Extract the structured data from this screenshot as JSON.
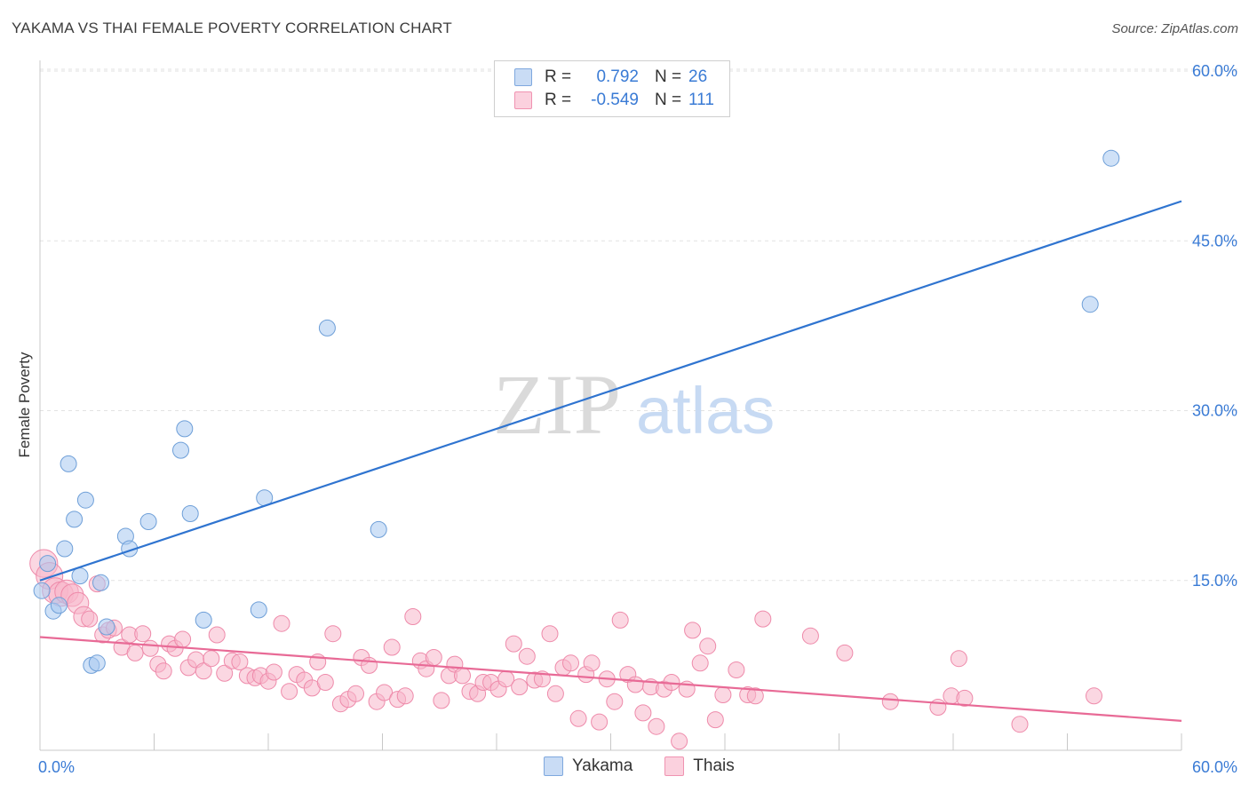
{
  "header": {
    "title": "YAKAMA VS THAI FEMALE POVERTY CORRELATION CHART",
    "source": "Source: ZipAtlas.com"
  },
  "watermark": {
    "zip": "ZIP",
    "atlas": "atlas"
  },
  "legend": {
    "rows": [
      {
        "r_label": "R =",
        "r_value": "0.792",
        "n_label": "N =",
        "n_value": "26",
        "color": "#a8c8f0"
      },
      {
        "r_label": "R =",
        "r_value": "-0.549",
        "n_label": "N =",
        "n_value": "111",
        "color": "#f7b6cb"
      }
    ]
  },
  "bottom_legend": [
    {
      "label": "Yakama",
      "color": "#a8c8f0"
    },
    {
      "label": "Thais",
      "color": "#f7b6cb"
    }
  ],
  "colors": {
    "yakama_fill": "#a8c8f0",
    "yakama_stroke": "#6e9fd8",
    "yakama_line": "#2f74d0",
    "thai_fill": "#f7b6cb",
    "thai_stroke": "#ee8aaa",
    "thai_line": "#e86a96",
    "grid": "#e2e2e2",
    "axis_label": "#3a7bd5"
  },
  "chart_data": {
    "type": "scatter",
    "title": "YAKAMA VS THAI FEMALE POVERTY CORRELATION CHART",
    "xlabel": "",
    "ylabel": "Female Poverty",
    "xlim": [
      0,
      60
    ],
    "ylim": [
      0,
      63.5
    ],
    "x_tick_labels": [
      "0.0%",
      "60.0%"
    ],
    "y_ticks": [
      15,
      30,
      45,
      60
    ],
    "y_tick_labels": [
      "15.0%",
      "30.0%",
      "45.0%",
      "60.0%"
    ],
    "grid": true,
    "legend_position": "top-center",
    "series": [
      {
        "name": "Yakama",
        "r": 0.792,
        "n": 26,
        "trend": {
          "x": [
            0,
            60
          ],
          "y": [
            15.0,
            48.5
          ]
        },
        "points": [
          [
            0.1,
            14.1
          ],
          [
            0.4,
            16.5
          ],
          [
            0.7,
            12.3
          ],
          [
            1.0,
            12.8
          ],
          [
            1.3,
            17.8
          ],
          [
            1.5,
            25.3
          ],
          [
            1.8,
            20.4
          ],
          [
            2.1,
            15.4
          ],
          [
            2.4,
            22.1
          ],
          [
            2.7,
            7.5
          ],
          [
            3.0,
            7.7
          ],
          [
            3.2,
            14.8
          ],
          [
            3.5,
            10.9
          ],
          [
            4.5,
            18.9
          ],
          [
            4.7,
            17.8
          ],
          [
            5.7,
            20.2
          ],
          [
            7.4,
            26.5
          ],
          [
            7.6,
            28.4
          ],
          [
            7.9,
            20.9
          ],
          [
            8.6,
            11.5
          ],
          [
            11.5,
            12.4
          ],
          [
            11.8,
            22.3
          ],
          [
            15.1,
            37.3
          ],
          [
            17.8,
            19.5
          ],
          [
            55.2,
            39.4
          ],
          [
            56.3,
            52.3
          ]
        ]
      },
      {
        "name": "Thais",
        "r": -0.549,
        "n": 111,
        "trend": {
          "x": [
            0,
            60
          ],
          "y": [
            10.0,
            2.6
          ]
        },
        "points": [
          [
            0.2,
            16.5
          ],
          [
            0.5,
            15.4
          ],
          [
            0.8,
            14.1
          ],
          [
            1.1,
            13.8
          ],
          [
            1.4,
            14.0
          ],
          [
            1.7,
            13.7
          ],
          [
            2.0,
            13.0
          ],
          [
            2.3,
            11.8
          ],
          [
            2.6,
            11.6
          ],
          [
            3.0,
            14.7
          ],
          [
            3.3,
            10.2
          ],
          [
            3.6,
            10.6
          ],
          [
            3.9,
            10.8
          ],
          [
            4.3,
            9.1
          ],
          [
            4.7,
            10.2
          ],
          [
            5.0,
            8.6
          ],
          [
            5.4,
            10.3
          ],
          [
            5.8,
            9.0
          ],
          [
            6.2,
            7.6
          ],
          [
            6.5,
            7.0
          ],
          [
            6.8,
            9.4
          ],
          [
            7.1,
            9.0
          ],
          [
            7.5,
            9.8
          ],
          [
            7.8,
            7.3
          ],
          [
            8.2,
            8.0
          ],
          [
            8.6,
            7.0
          ],
          [
            9.0,
            8.1
          ],
          [
            9.3,
            10.2
          ],
          [
            9.7,
            6.8
          ],
          [
            10.1,
            7.9
          ],
          [
            10.5,
            7.8
          ],
          [
            10.9,
            6.6
          ],
          [
            11.3,
            6.4
          ],
          [
            11.6,
            6.6
          ],
          [
            12.0,
            6.1
          ],
          [
            12.3,
            6.9
          ],
          [
            12.7,
            11.2
          ],
          [
            13.1,
            5.2
          ],
          [
            13.5,
            6.7
          ],
          [
            13.9,
            6.2
          ],
          [
            14.3,
            5.5
          ],
          [
            14.6,
            7.8
          ],
          [
            15.0,
            6.0
          ],
          [
            15.4,
            10.3
          ],
          [
            15.8,
            4.1
          ],
          [
            16.2,
            4.5
          ],
          [
            16.6,
            5.0
          ],
          [
            16.9,
            8.2
          ],
          [
            17.3,
            7.5
          ],
          [
            17.7,
            4.3
          ],
          [
            18.1,
            5.1
          ],
          [
            18.5,
            9.1
          ],
          [
            18.8,
            4.5
          ],
          [
            19.2,
            4.8
          ],
          [
            19.6,
            11.8
          ],
          [
            20.0,
            7.9
          ],
          [
            20.3,
            7.2
          ],
          [
            20.7,
            8.2
          ],
          [
            21.1,
            4.4
          ],
          [
            21.5,
            6.6
          ],
          [
            21.8,
            7.6
          ],
          [
            22.2,
            6.6
          ],
          [
            22.6,
            5.2
          ],
          [
            23.0,
            5.0
          ],
          [
            23.3,
            6.0
          ],
          [
            23.7,
            6.0
          ],
          [
            24.1,
            5.4
          ],
          [
            24.5,
            6.3
          ],
          [
            24.9,
            9.4
          ],
          [
            25.2,
            5.6
          ],
          [
            25.6,
            8.3
          ],
          [
            26.0,
            6.2
          ],
          [
            26.4,
            6.3
          ],
          [
            26.8,
            10.3
          ],
          [
            27.1,
            5.0
          ],
          [
            27.5,
            7.3
          ],
          [
            27.9,
            7.7
          ],
          [
            28.3,
            2.8
          ],
          [
            28.7,
            6.7
          ],
          [
            29.0,
            7.7
          ],
          [
            29.4,
            2.5
          ],
          [
            29.8,
            6.3
          ],
          [
            30.2,
            4.3
          ],
          [
            30.5,
            11.5
          ],
          [
            30.9,
            6.7
          ],
          [
            31.3,
            5.8
          ],
          [
            31.7,
            3.3
          ],
          [
            32.1,
            5.6
          ],
          [
            32.4,
            2.1
          ],
          [
            32.8,
            5.4
          ],
          [
            33.2,
            6.0
          ],
          [
            33.6,
            0.8
          ],
          [
            34.0,
            5.4
          ],
          [
            34.3,
            10.6
          ],
          [
            34.7,
            7.7
          ],
          [
            35.1,
            9.2
          ],
          [
            35.5,
            2.7
          ],
          [
            35.9,
            4.9
          ],
          [
            36.6,
            7.1
          ],
          [
            37.2,
            4.9
          ],
          [
            37.6,
            4.8
          ],
          [
            38.0,
            11.6
          ],
          [
            40.5,
            10.1
          ],
          [
            42.3,
            8.6
          ],
          [
            44.7,
            4.3
          ],
          [
            47.2,
            3.8
          ],
          [
            47.9,
            4.8
          ],
          [
            48.3,
            8.1
          ],
          [
            48.6,
            4.6
          ],
          [
            51.5,
            2.3
          ],
          [
            55.4,
            4.8
          ]
        ]
      }
    ]
  }
}
